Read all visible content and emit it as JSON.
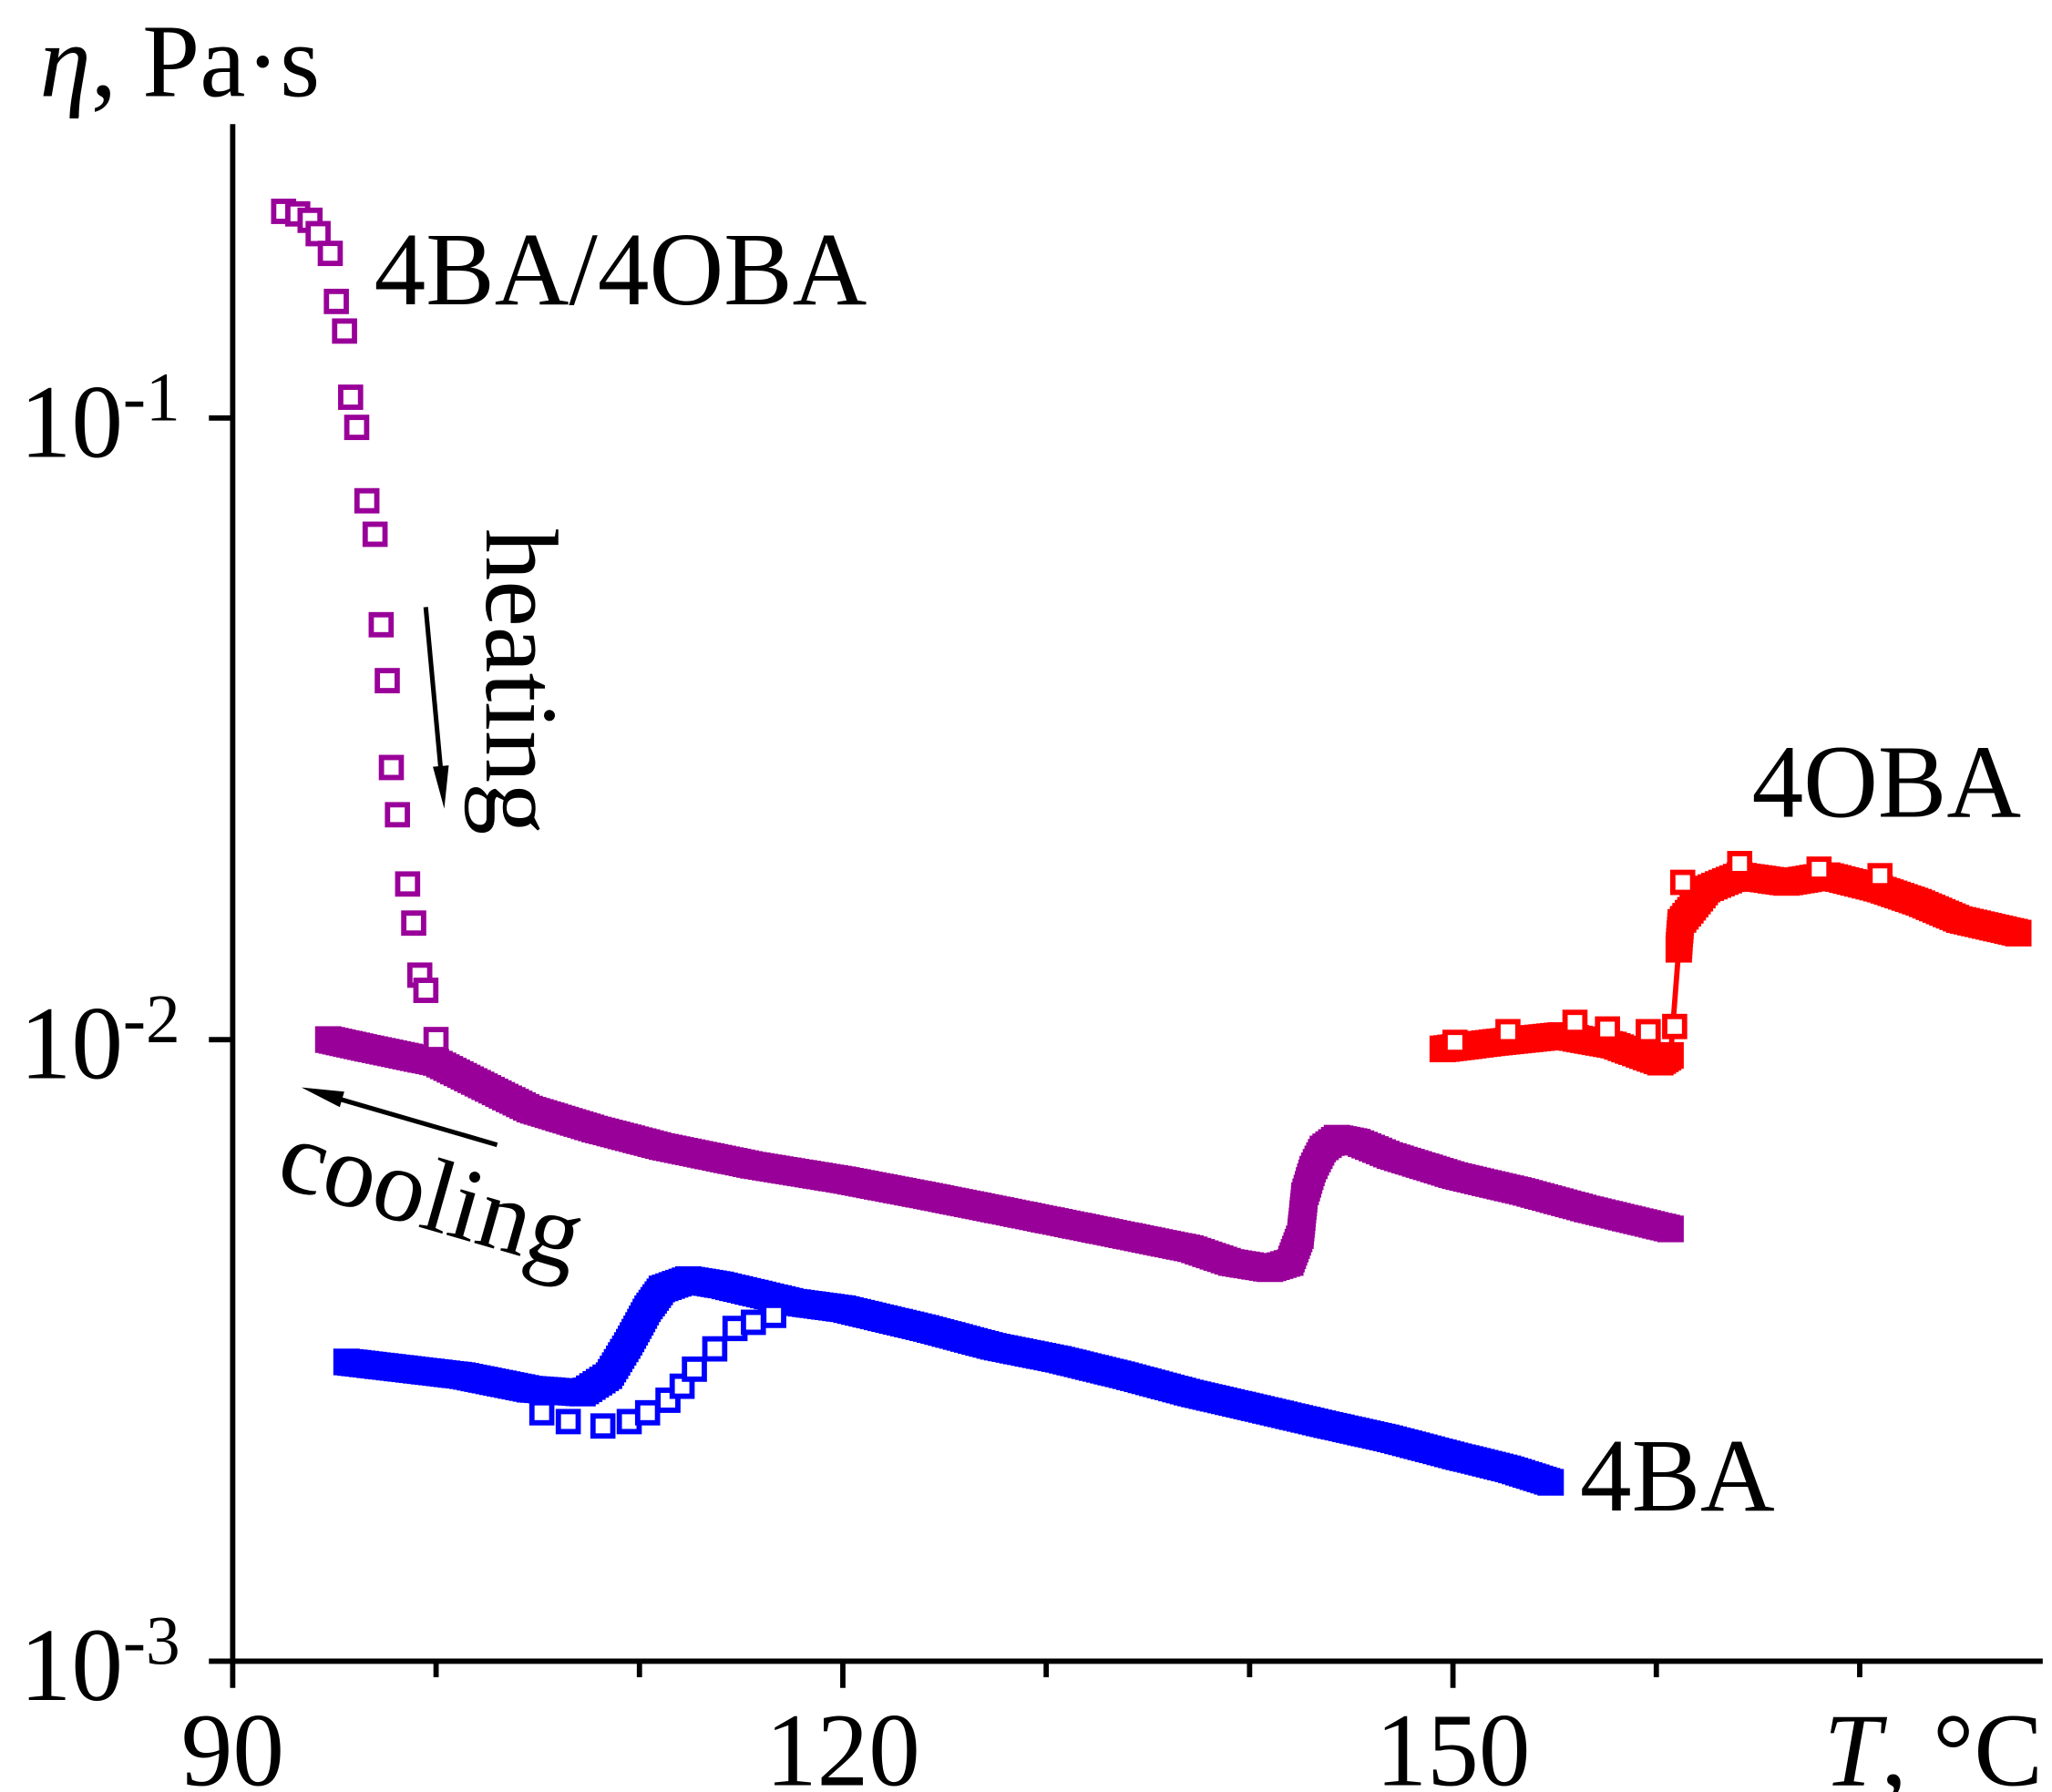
{
  "chart_data": {
    "type": "scatter",
    "xlabel": {
      "symbol": "T",
      "unit": ", °C"
    },
    "ylabel": {
      "symbol": "η",
      "unit": ", Pa·s"
    },
    "xlim": [
      90,
      179
    ],
    "ylim": [
      0.001,
      0.3
    ],
    "ylog": true,
    "xticks": {
      "major": [
        90,
        120,
        150
      ],
      "minor": [
        100,
        110,
        130,
        140,
        160,
        170
      ]
    },
    "yticks": [
      {
        "value": 0.1,
        "base": "10",
        "exp": "-1"
      },
      {
        "value": 0.01,
        "base": "10",
        "exp": "-2"
      },
      {
        "value": 0.001,
        "base": "10",
        "exp": "-3"
      }
    ],
    "labels": [
      {
        "text": "4BA/4OBA"
      },
      {
        "text": "4OBA"
      },
      {
        "text": "4BA"
      }
    ],
    "annotations": [
      {
        "text": "heating"
      },
      {
        "text": "cooling"
      }
    ],
    "series": [
      {
        "sample": 2,
        "heating": false,
        "line": false,
        "color": "#0000FF",
        "x": [
          95.6,
          101.3,
          104.6,
          107.2,
          108.5,
          109.5,
          110.4,
          111.1,
          112.4,
          114.0,
          117.6,
          120.0,
          124.1,
          127.4,
          130.6,
          133.9,
          137.1,
          140.4,
          143.6,
          146.9,
          150.1,
          152.7,
          154.8
        ],
        "y": [
          0.00303,
          0.00288,
          0.00274,
          0.0027,
          0.00288,
          0.00326,
          0.00369,
          0.00397,
          0.00411,
          0.00403,
          0.00378,
          0.00369,
          0.00343,
          0.00321,
          0.00306,
          0.00288,
          0.0027,
          0.00255,
          0.00241,
          0.00228,
          0.00214,
          0.00204,
          0.00194
        ]
      },
      {
        "sample": 2,
        "heating": true,
        "line": false,
        "color": "#0000FF",
        "x": [
          105.2,
          106.5,
          108.2,
          109.5,
          110.4,
          111.4,
          112.1,
          112.7,
          113.7,
          114.7,
          115.6,
          116.6
        ],
        "y": [
          0.00251,
          0.00243,
          0.00239,
          0.00243,
          0.00251,
          0.00263,
          0.00277,
          0.00295,
          0.00318,
          0.00343,
          0.00351,
          0.0036
        ]
      },
      {
        "sample": 0,
        "heating": false,
        "line": false,
        "color": "#990099",
        "x": [
          94.7,
          96.8,
          100.0,
          104.6,
          107.8,
          111.1,
          115.6,
          120.0,
          124.1,
          127.4,
          133.9,
          137.1,
          139.1,
          141.0,
          142.0,
          142.5,
          142.7,
          143.1,
          143.6,
          144.3,
          145.3,
          146.9,
          150.1,
          153.4,
          156.6,
          160.7
        ],
        "y": [
          0.01,
          0.00966,
          0.00919,
          0.00773,
          0.00718,
          0.00673,
          0.00628,
          0.00595,
          0.00561,
          0.00534,
          0.00484,
          0.00461,
          0.00438,
          0.00428,
          0.00438,
          0.00484,
          0.00561,
          0.00619,
          0.00667,
          0.00694,
          0.00684,
          0.00651,
          0.00604,
          0.0057,
          0.00534,
          0.00496
        ]
      },
      {
        "sample": 0,
        "heating": true,
        "line": false,
        "color": "#990099",
        "x": [
          92.5,
          93.2,
          93.8,
          94.2,
          94.8,
          95.1,
          95.5,
          95.8,
          96.1,
          96.6,
          97.0,
          97.3,
          97.6,
          97.8,
          98.1,
          98.6,
          98.9,
          99.2,
          99.5,
          100.0
        ],
        "y": [
          0.215,
          0.213,
          0.208,
          0.198,
          0.184,
          0.154,
          0.138,
          0.108,
          0.0966,
          0.0736,
          0.065,
          0.0465,
          0.0378,
          0.0274,
          0.023,
          0.0178,
          0.0154,
          0.0127,
          0.012,
          0.01
        ]
      },
      {
        "sample": 1,
        "heating": false,
        "line": true,
        "color": "#FF0000",
        "x": [
          149.5,
          152.1,
          155.3,
          157.9,
          160.2,
          160.7,
          161.1,
          161.2,
          162.5,
          164.1,
          166.4,
          168.4,
          171.0,
          172.9,
          174.9,
          177.8
        ],
        "y": [
          0.00966,
          0.0099,
          0.01015,
          0.0098,
          0.0092,
          0.00943,
          0.01398,
          0.01544,
          0.01747,
          0.01835,
          0.0179,
          0.01835,
          0.01747,
          0.01663,
          0.0156,
          0.01484
        ]
      },
      {
        "sample": 1,
        "heating": true,
        "line": false,
        "color": "#FF0000",
        "x": [
          150.1,
          152.7,
          156.0,
          157.6,
          159.6,
          160.9,
          161.3,
          164.1,
          168.0,
          171.0
        ],
        "y": [
          0.0099,
          0.0103,
          0.01066,
          0.0104,
          0.0103,
          0.0105,
          0.0179,
          0.0192,
          0.0188,
          0.01835
        ]
      }
    ]
  }
}
